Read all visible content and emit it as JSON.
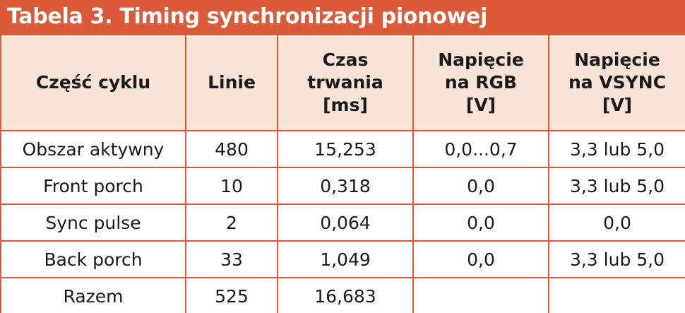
{
  "table": {
    "title": "Tabela 3. Timing synchronizacji pionowej",
    "headers": [
      [
        "Część cyklu"
      ],
      [
        "Linie"
      ],
      [
        "Czas",
        "trwania",
        "[ms]"
      ],
      [
        "Napięcie",
        "na RGB",
        "[V]"
      ],
      [
        "Napięcie",
        "na VSYNC",
        "[V]"
      ]
    ],
    "rows": [
      [
        "Obszar aktywny",
        "480",
        "15,253",
        "0,0...0,7",
        "3,3 lub 5,0"
      ],
      [
        "Front porch",
        "10",
        "0,318",
        "0,0",
        "3,3 lub 5,0"
      ],
      [
        "Sync pulse",
        "2",
        "0,064",
        "0,0",
        "0,0"
      ],
      [
        "Back porch",
        "33",
        "1,049",
        "0,0",
        "3,3 lub 5,0"
      ],
      [
        "Razem",
        "525",
        "16,683",
        "",
        ""
      ]
    ],
    "colors": {
      "accent": "#dc5a3a",
      "header_bg": "#f8e3d6",
      "text": "#1a1a1a"
    }
  }
}
